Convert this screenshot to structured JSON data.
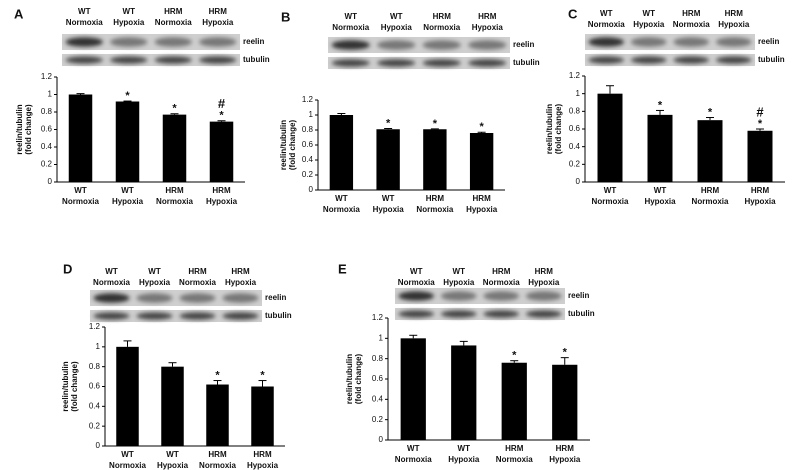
{
  "chart_data": [
    {
      "type": "bar",
      "panel": "A",
      "lanes": [
        "WT Normoxia",
        "WT Hypoxia",
        "HRM Normoxia",
        "HRM Hypoxia"
      ],
      "blots": [
        "reelin",
        "tubulin"
      ],
      "ylabel": [
        "reelin/tubulin",
        "(fold change)"
      ],
      "categories": [
        "WT Normoxia",
        "WT Hypoxia",
        "HRM Normoxia",
        "HRM Hypoxia"
      ],
      "values": [
        1.0,
        0.92,
        0.77,
        0.69
      ],
      "errors": [
        0.01,
        0.005,
        0.01,
        0.01
      ],
      "stars": [
        null,
        "*",
        "*",
        "*"
      ],
      "hashes": [
        null,
        null,
        null,
        "#"
      ],
      "color": "#000000",
      "ylim": [
        0,
        1.2
      ],
      "yticks": [
        0,
        0.2,
        0.4,
        0.6,
        0.8,
        1,
        1.2
      ]
    },
    {
      "type": "bar",
      "panel": "B",
      "lanes": [
        "WT Normoxia",
        "WT Hypoxia",
        "HRM Normoxia",
        "HRM Hypoxia"
      ],
      "blots": [
        "reelin",
        "tubulin"
      ],
      "ylabel": [
        "reelin/tubulin",
        "(fold change)"
      ],
      "categories": [
        "WT Normoxia",
        "WT Hypoxia",
        "HRM Normoxia",
        "HRM Hypoxia"
      ],
      "values": [
        1.0,
        0.81,
        0.81,
        0.76
      ],
      "errors": [
        0.02,
        0.01,
        0.005,
        0.01
      ],
      "stars": [
        null,
        "*",
        "*",
        "*"
      ],
      "hashes": [
        null,
        null,
        null,
        null
      ],
      "color": "#000000",
      "ylim": [
        0,
        1.2
      ],
      "yticks": [
        0,
        0.2,
        0.4,
        0.6,
        0.8,
        1,
        1.2
      ]
    },
    {
      "type": "bar",
      "panel": "C",
      "lanes": [
        "WT Normoxia",
        "WT Hypoxia",
        "HRM Normoxia",
        "HRM Hypoxia"
      ],
      "blots": [
        "reelin",
        "tubulin"
      ],
      "ylabel": [
        "reelin/tubulin",
        "(fold change)"
      ],
      "categories": [
        "WT Normoxia",
        "WT Hypoxia",
        "HRM Normoxia",
        "HRM Hypoxia"
      ],
      "values": [
        1.0,
        0.76,
        0.7,
        0.58
      ],
      "errors": [
        0.09,
        0.05,
        0.03,
        0.02
      ],
      "stars": [
        null,
        "*",
        "*",
        "*"
      ],
      "hashes": [
        null,
        null,
        null,
        "#"
      ],
      "color": "#000000",
      "ylim": [
        0,
        1.2
      ],
      "yticks": [
        0,
        0.2,
        0.4,
        0.6,
        0.8,
        1,
        1.2
      ]
    },
    {
      "type": "bar",
      "panel": "D",
      "lanes": [
        "WT Normoxia",
        "WT Hypoxia",
        "HRM Normoxia",
        "HRM Hypoxia"
      ],
      "blots": [
        "reelin",
        "tubulin"
      ],
      "ylabel": [
        "reelin/tubulin",
        "(fold change)"
      ],
      "categories": [
        "WT Normoxia",
        "WT Hypoxia",
        "HRM Normoxia",
        "HRM Hypoxia"
      ],
      "values": [
        1.0,
        0.8,
        0.62,
        0.6
      ],
      "errors": [
        0.06,
        0.04,
        0.04,
        0.06
      ],
      "stars": [
        null,
        null,
        "*",
        "*"
      ],
      "hashes": [
        null,
        null,
        null,
        null
      ],
      "color": "#000000",
      "ylim": [
        0,
        1.2
      ],
      "yticks": [
        0,
        0.2,
        0.4,
        0.6,
        0.8,
        1,
        1.2
      ]
    },
    {
      "type": "bar",
      "panel": "E",
      "lanes": [
        "WT Normoxia",
        "WT Hypoxia",
        "HRM Normoxia",
        "HRM Hypoxia"
      ],
      "blots": [
        "reelin",
        "tubulin"
      ],
      "ylabel": [
        "reelin/tubulin",
        "(fold change)"
      ],
      "categories": [
        "WT Normoxia",
        "WT Hypoxia",
        "HRM Normoxia",
        "HRM Hypoxia"
      ],
      "values": [
        1.0,
        0.93,
        0.76,
        0.74
      ],
      "errors": [
        0.03,
        0.04,
        0.02,
        0.07
      ],
      "stars": [
        null,
        null,
        "*",
        "*"
      ],
      "hashes": [
        null,
        null,
        null,
        null
      ],
      "color": "#000000",
      "ylim": [
        0,
        1.2
      ],
      "yticks": [
        0,
        0.2,
        0.4,
        0.6,
        0.8,
        1,
        1.2
      ]
    }
  ]
}
